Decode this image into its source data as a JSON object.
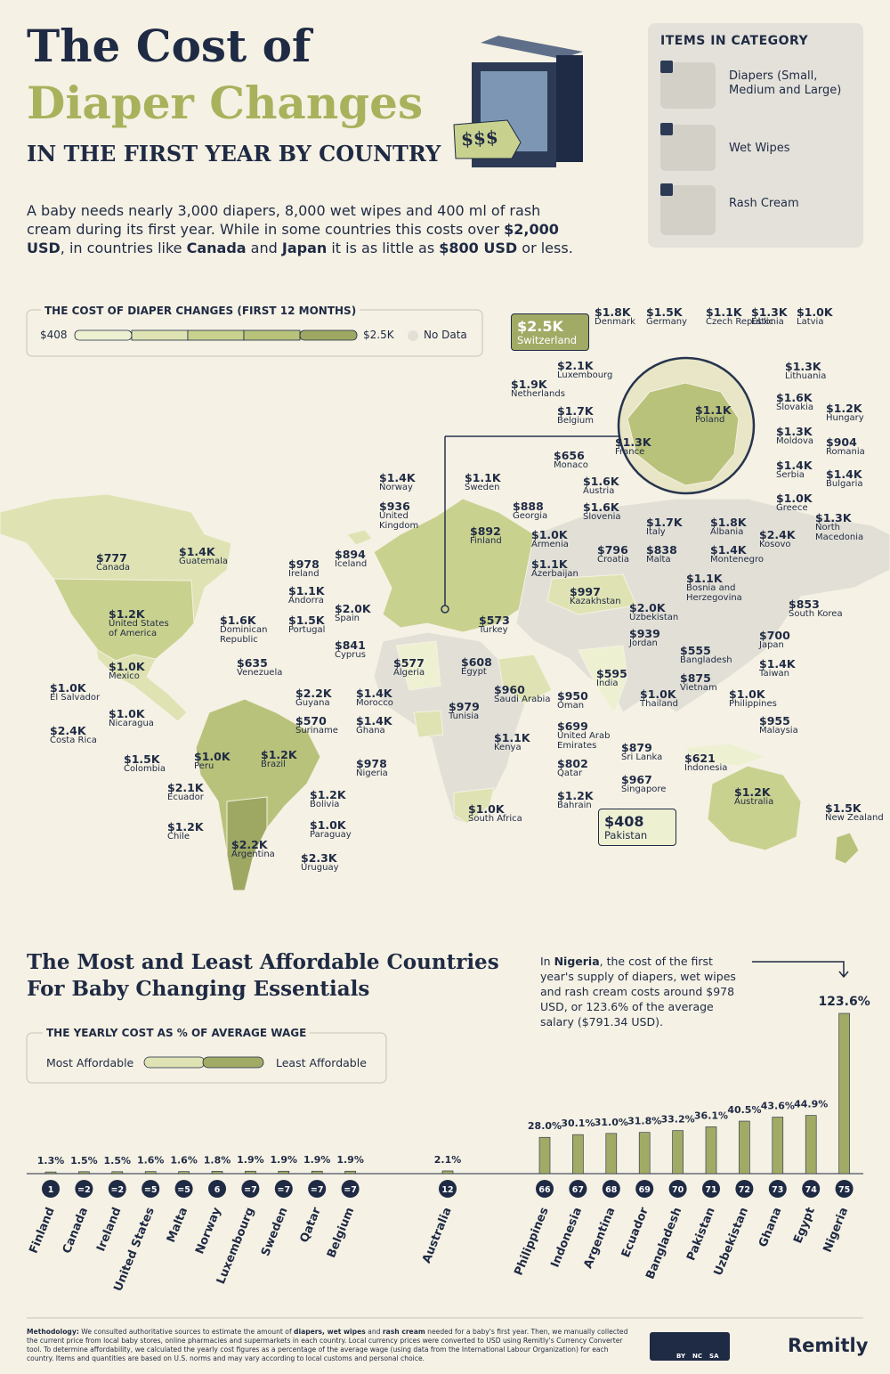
{
  "header": {
    "title_line1": "The Cost of",
    "title_line2": "Diaper Changes",
    "subtitle": "IN THE FIRST YEAR BY COUNTRY",
    "badge": "$$$"
  },
  "intro": [
    {
      "text": "A baby needs nearly 3,000 diapers, 8,000 wet wipes and 400 ml of rash cream during its first year. While in some countries this costs over "
    },
    {
      "text": "$2,000 USD",
      "bold": true
    },
    {
      "text": ", in countries like "
    },
    {
      "text": "Canada",
      "bold": true
    },
    {
      "text": " and "
    },
    {
      "text": "Japan",
      "bold": true
    },
    {
      "text": " it is as little as "
    },
    {
      "text": "$800 USD",
      "bold": true
    },
    {
      "text": " or less."
    }
  ],
  "items": {
    "title": "ITEMS IN CATEGORY",
    "list": [
      "Diapers (Small, Medium and Large)",
      "Wet Wipes",
      "Rash Cream"
    ]
  },
  "map": {
    "legend": {
      "title": "THE COST OF DIAPER CHANGES (FIRST 12 MONTHS)",
      "min": "$408",
      "max": "$2.5K",
      "no_data": "No Data"
    },
    "callouts": [
      {
        "value": "$2.5K",
        "name": "Switzerland"
      },
      {
        "value": "$408",
        "name": "Pakistan"
      }
    ],
    "labels": [
      {
        "value": "$1.8K",
        "name": "Denmark"
      },
      {
        "value": "$1.5K",
        "name": "Germany"
      },
      {
        "value": "$1.1K",
        "name": "Czech Republic"
      },
      {
        "value": "$1.3K",
        "name": "Estonia"
      },
      {
        "value": "$1.0K",
        "name": "Latvia"
      },
      {
        "value": "$2.1K",
        "name": "Luxembourg"
      },
      {
        "value": "$1.9K",
        "name": "Netherlands"
      },
      {
        "value": "$1.3K",
        "name": "Lithuania"
      },
      {
        "value": "$1.7K",
        "name": "Belgium"
      },
      {
        "value": "$1.1K",
        "name": "Poland"
      },
      {
        "value": "$1.6K",
        "name": "Slovakia"
      },
      {
        "value": "$1.2K",
        "name": "Hungary"
      },
      {
        "value": "$1.3K",
        "name": "France"
      },
      {
        "value": "$1.3K",
        "name": "Moldova"
      },
      {
        "value": "$904",
        "name": "Romania"
      },
      {
        "value": "$656",
        "name": "Monaco"
      },
      {
        "value": "$1.4K",
        "name": "Serbia"
      },
      {
        "value": "$1.4K",
        "name": "Bulgaria"
      },
      {
        "value": "$1.6K",
        "name": "Austria"
      },
      {
        "value": "$1.0K",
        "name": "Greece"
      },
      {
        "value": "$1.6K",
        "name": "Slovenia"
      },
      {
        "value": "$1.3K",
        "name": "North Macedonia"
      },
      {
        "value": "$1.7K",
        "name": "Italy"
      },
      {
        "value": "$1.8K",
        "name": "Albania"
      },
      {
        "value": "$2.4K",
        "name": "Kosovo"
      },
      {
        "value": "$796",
        "name": "Croatia"
      },
      {
        "value": "$838",
        "name": "Malta"
      },
      {
        "value": "$1.4K",
        "name": "Montenegro"
      },
      {
        "value": "$1.1K",
        "name": "Bosnia and Herzegovina"
      },
      {
        "value": "$1.4K",
        "name": "Norway"
      },
      {
        "value": "$1.1K",
        "name": "Sweden"
      },
      {
        "value": "$936",
        "name": "United Kingdom"
      },
      {
        "value": "$888",
        "name": "Georgia"
      },
      {
        "value": "$892",
        "name": "Finland"
      },
      {
        "value": "$1.0K",
        "name": "Armenia"
      },
      {
        "value": "$894",
        "name": "Iceland"
      },
      {
        "value": "$1.4K",
        "name": "Guatemala"
      },
      {
        "value": "$777",
        "name": "Canada"
      },
      {
        "value": "$978",
        "name": "Ireland"
      },
      {
        "value": "$1.1K",
        "name": "Azerbaijan"
      },
      {
        "value": "$1.1K",
        "name": "Andorra"
      },
      {
        "value": "$997",
        "name": "Kazakhstan"
      },
      {
        "value": "$2.0K",
        "name": "Spain"
      },
      {
        "value": "$2.0K",
        "name": "Uzbekistan"
      },
      {
        "value": "$1.2K",
        "name": "United States of America"
      },
      {
        "value": "$1.6K",
        "name": "Dominican Republic"
      },
      {
        "value": "$1.5K",
        "name": "Portugal"
      },
      {
        "value": "$573",
        "name": "Turkey"
      },
      {
        "value": "$939",
        "name": "Jordan"
      },
      {
        "value": "$853",
        "name": "South Korea"
      },
      {
        "value": "$700",
        "name": "Japan"
      },
      {
        "value": "$841",
        "name": "Cyprus"
      },
      {
        "value": "$555",
        "name": "Bangladesh"
      },
      {
        "value": "$1.0K",
        "name": "Mexico"
      },
      {
        "value": "$635",
        "name": "Venezuela"
      },
      {
        "value": "$577",
        "name": "Algeria"
      },
      {
        "value": "$608",
        "name": "Egypt"
      },
      {
        "value": "$595",
        "name": "India"
      },
      {
        "value": "$1.4K",
        "name": "Taiwan"
      },
      {
        "value": "$875",
        "name": "Vietnam"
      },
      {
        "value": "$1.0K",
        "name": "El Salvador"
      },
      {
        "value": "$2.2K",
        "name": "Guyana"
      },
      {
        "value": "$1.4K",
        "name": "Morocco"
      },
      {
        "value": "$960",
        "name": "Saudi Arabia"
      },
      {
        "value": "$950",
        "name": "Oman"
      },
      {
        "value": "$1.0K",
        "name": "Thailand"
      },
      {
        "value": "$1.0K",
        "name": "Philippines"
      },
      {
        "value": "$1.0K",
        "name": "Nicaragua"
      },
      {
        "value": "$570",
        "name": "Suriname"
      },
      {
        "value": "$1.4K",
        "name": "Ghana"
      },
      {
        "value": "$979",
        "name": "Tunisia"
      },
      {
        "value": "$699",
        "name": "United Arab Emirates"
      },
      {
        "value": "$955",
        "name": "Malaysia"
      },
      {
        "value": "$2.4K",
        "name": "Costa Rica"
      },
      {
        "value": "$1.1K",
        "name": "Kenya"
      },
      {
        "value": "$879",
        "name": "Sri Lanka"
      },
      {
        "value": "$1.5K",
        "name": "Colombia"
      },
      {
        "value": "$1.0K",
        "name": "Peru"
      },
      {
        "value": "$1.2K",
        "name": "Brazil"
      },
      {
        "value": "$621",
        "name": "Indonesia"
      },
      {
        "value": "$802",
        "name": "Qatar"
      },
      {
        "value": "$978",
        "name": "Nigeria"
      },
      {
        "value": "$967",
        "name": "Singapore"
      },
      {
        "value": "$2.1K",
        "name": "Ecuador"
      },
      {
        "value": "$1.2K",
        "name": "Bolivia"
      },
      {
        "value": "$1.2K",
        "name": "Australia"
      },
      {
        "value": "$1.2K",
        "name": "Bahrain"
      },
      {
        "value": "$1.0K",
        "name": "South Africa"
      },
      {
        "value": "$1.5K",
        "name": "New Zealand"
      },
      {
        "value": "$1.2K",
        "name": "Chile"
      },
      {
        "value": "$1.0K",
        "name": "Paraguay"
      },
      {
        "value": "$2.2K",
        "name": "Argentina"
      },
      {
        "value": "$2.3K",
        "name": "Uruguay"
      }
    ]
  },
  "chart_data": {
    "type": "bar",
    "title_lines": [
      "The Most and Least Affordable Countries",
      "For Baby Changing Essentials"
    ],
    "legend": {
      "title": "THE YEARLY COST AS % OF AVERAGE WAGE",
      "low": "Most Affordable",
      "high": "Least Affordable"
    },
    "annotation": [
      {
        "text": "In "
      },
      {
        "text": "Nigeria",
        "bold": true
      },
      {
        "text": ", the cost of the first year's supply of diapers, wet wipes and rash cream costs around $978 USD, or 123.6% of the average salary ($791.34 USD)."
      }
    ],
    "categories": [
      "Finland",
      "Canada",
      "Ireland",
      "United States",
      "Malta",
      "Norway",
      "Luxembourg",
      "Sweden",
      "Qatar",
      "Belgium",
      "Australia",
      "Philippines",
      "Indonesia",
      "Argentina",
      "Ecuador",
      "Bangladesh",
      "Pakistan",
      "Uzbekistan",
      "Ghana",
      "Egypt",
      "Nigeria"
    ],
    "ranks": [
      "1",
      "=2",
      "=2",
      "=5",
      "=5",
      "6",
      "=7",
      "=7",
      "=7",
      "=7",
      "12",
      "66",
      "67",
      "68",
      "69",
      "70",
      "71",
      "72",
      "73",
      "74",
      "75"
    ],
    "values": [
      1.3,
      1.5,
      1.5,
      1.6,
      1.6,
      1.8,
      1.9,
      1.9,
      1.9,
      1.9,
      2.1,
      28.0,
      30.1,
      31.0,
      31.8,
      33.2,
      36.1,
      40.5,
      43.6,
      44.9,
      123.6
    ],
    "value_labels": [
      "1.3%",
      "1.5%",
      "1.5%",
      "1.6%",
      "1.6%",
      "1.8%",
      "1.9%",
      "1.9%",
      "1.9%",
      "1.9%",
      "2.1%",
      "28.0%",
      "30.1%",
      "31.0%",
      "31.8%",
      "33.2%",
      "36.1%",
      "40.5%",
      "43.6%",
      "44.9%",
      "123.6%"
    ],
    "color": "#a2ab66"
  },
  "footer": {
    "methodology": [
      {
        "text": "Methodology:",
        "bold": true
      },
      {
        "text": " We consulted authoritative sources to estimate the amount of "
      },
      {
        "text": "diapers, wet wipes",
        "bold": true
      },
      {
        "text": " and "
      },
      {
        "text": "rash cream",
        "bold": true
      },
      {
        "text": " needed for a baby's first year. Then, we manually collected the current price from local baby stores, online pharmacies and supermarkets in each country. Local currency prices were converted to USD using Remitly's Currency Converter tool. To determine affordability, we calculated the yearly cost figures as a percentage of the average wage (using data from the International Labour Organization) for each country. Items and quantities are based on U.S. norms and may vary according to local customs and personal choice."
      }
    ],
    "license": [
      "BY",
      "NC",
      "SA"
    ],
    "brand": "Remitly"
  }
}
